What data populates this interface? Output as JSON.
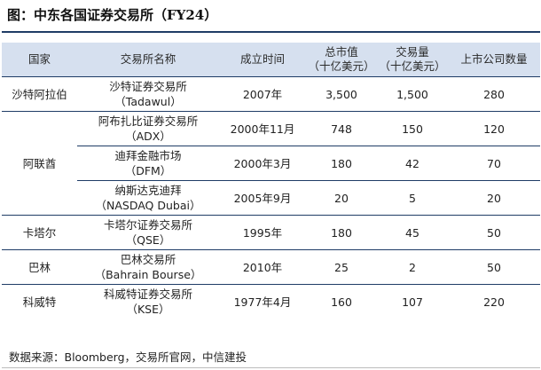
{
  "title": "图：中东各国证券交易所（FY24）",
  "headers": {
    "country": "国家",
    "exchange": "交易所名称",
    "founded": "成立时间",
    "mcap_line1": "总市值",
    "mcap_line2": "（十亿美元）",
    "volume_line1": "交易量",
    "volume_line2": "（十亿美元）",
    "listed": "上市公司数量"
  },
  "rows": [
    {
      "country": "沙特阿拉伯",
      "exchange_cn": "沙特证券交易所",
      "exchange_en": "（Tadawul）",
      "founded": "2007年",
      "mcap": "3,500",
      "volume": "1,500",
      "listed": "280"
    },
    {
      "country": "阿联酋",
      "exchange_cn": "阿布扎比证券交易所",
      "exchange_en": "（ADX）",
      "founded": "2000年11月",
      "mcap": "748",
      "volume": "150",
      "listed": "120"
    },
    {
      "country": "",
      "exchange_cn": "迪拜金融市场",
      "exchange_en": "（DFM）",
      "founded": "2000年3月",
      "mcap": "180",
      "volume": "42",
      "listed": "70"
    },
    {
      "country": "",
      "exchange_cn": "纳斯达克迪拜",
      "exchange_en": "（NASDAQ Dubai）",
      "founded": "2005年9月",
      "mcap": "20",
      "volume": "5",
      "listed": "20"
    },
    {
      "country": "卡塔尔",
      "exchange_cn": "卡塔尔证券交易所",
      "exchange_en": "（QSE）",
      "founded": "1995年",
      "mcap": "180",
      "volume": "45",
      "listed": "50"
    },
    {
      "country": "巴林",
      "exchange_cn": "巴林交易所",
      "exchange_en": "（Bahrain Bourse）",
      "founded": "2010年",
      "mcap": "25",
      "volume": "2",
      "listed": "50"
    },
    {
      "country": "科威特",
      "exchange_cn": "科威特证券交易所",
      "exchange_en": "（KSE）",
      "founded": "1977年4月",
      "mcap": "160",
      "volume": "107",
      "listed": "220"
    }
  ],
  "source": "数据来源：Bloomberg，交易所官网，中信建投",
  "colors": {
    "header_bg": "#d6e0ef",
    "rule": "#1f3c66"
  }
}
